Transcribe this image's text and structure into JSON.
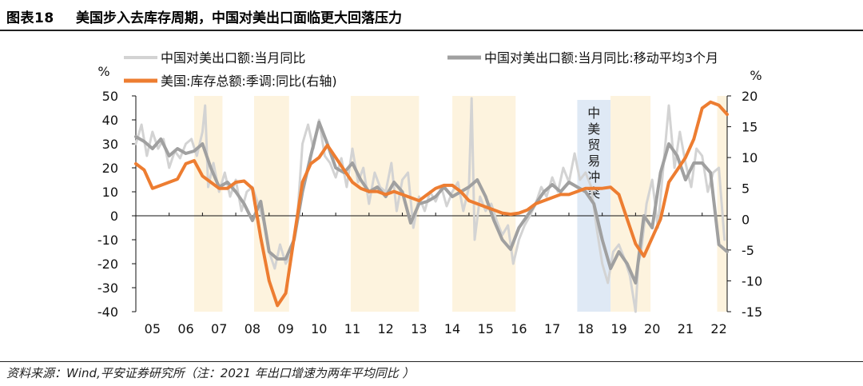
{
  "figure": {
    "label": "图表18",
    "title": "美国步入去库存周期，中国对美出口面临更大回落压力",
    "source": "资料来源：Wind,平安证券研究所（注：2021 年出口增速为两年平均同比 ）"
  },
  "chart_data": {
    "type": "line",
    "left_unit": "%",
    "right_unit": "%",
    "x_ticks": [
      "05",
      "06",
      "07",
      "08",
      "09",
      "10",
      "11",
      "12",
      "13",
      "14",
      "15",
      "16",
      "17",
      "18",
      "19",
      "20",
      "21",
      "22"
    ],
    "x_range": [
      2005.0,
      2022.75
    ],
    "y_left": {
      "ticks": [
        50,
        40,
        30,
        20,
        10,
        0,
        -10,
        -20,
        -30,
        -40
      ],
      "min": -40,
      "max": 50
    },
    "y_right": {
      "ticks": [
        20,
        15,
        10,
        5,
        0,
        -5,
        -10,
        -15
      ],
      "min": -15,
      "max": 20
    },
    "colors": {
      "raw": "#d3d3d3",
      "ma3": "#a0a0a0",
      "inventory": "#ed7d31",
      "cycle": "#fdf3de",
      "event": "#dfe9f5"
    },
    "shaded_periods": [
      {
        "start": 2006.75,
        "end": 2007.6
      },
      {
        "start": 2008.55,
        "end": 2009.6
      },
      {
        "start": 2011.45,
        "end": 2013.5
      },
      {
        "start": 2014.5,
        "end": 2016.4
      },
      {
        "start": 2019.25,
        "end": 2020.45
      },
      {
        "start": 2022.45,
        "end": 2022.75
      }
    ],
    "event_period": {
      "start": 2018.25,
      "end": 2019.25,
      "label": "中美贸易冲突"
    },
    "series": [
      {
        "name": "中国对美出口额:当月同比",
        "axis": "left",
        "x": [
          2005.0,
          2005.17,
          2005.33,
          2005.5,
          2005.67,
          2005.83,
          2006.0,
          2006.17,
          2006.33,
          2006.5,
          2006.67,
          2006.83,
          2007.0,
          2007.08,
          2007.17,
          2007.33,
          2007.5,
          2007.67,
          2007.83,
          2008.0,
          2008.17,
          2008.33,
          2008.5,
          2008.67,
          2008.83,
          2009.0,
          2009.17,
          2009.33,
          2009.5,
          2009.67,
          2009.83,
          2010.0,
          2010.17,
          2010.33,
          2010.5,
          2010.67,
          2010.83,
          2011.0,
          2011.17,
          2011.33,
          2011.5,
          2011.67,
          2011.83,
          2012.0,
          2012.17,
          2012.33,
          2012.5,
          2012.67,
          2012.83,
          2013.0,
          2013.17,
          2013.33,
          2013.5,
          2013.67,
          2013.83,
          2014.0,
          2014.17,
          2014.33,
          2014.5,
          2014.67,
          2014.83,
          2015.0,
          2015.08,
          2015.17,
          2015.33,
          2015.5,
          2015.67,
          2015.83,
          2016.0,
          2016.17,
          2016.33,
          2016.5,
          2016.67,
          2016.83,
          2017.0,
          2017.17,
          2017.33,
          2017.5,
          2017.67,
          2017.83,
          2018.0,
          2018.17,
          2018.33,
          2018.5,
          2018.67,
          2018.83,
          2019.0,
          2019.17,
          2019.33,
          2019.5,
          2019.67,
          2019.83,
          2020.0,
          2020.08,
          2020.17,
          2020.33,
          2020.5,
          2020.67,
          2020.83,
          2021.0,
          2021.17,
          2021.33,
          2021.5,
          2021.67,
          2021.83,
          2022.0,
          2022.17,
          2022.33,
          2022.5,
          2022.67
        ],
        "values": [
          30,
          38,
          25,
          35,
          28,
          32,
          20,
          27,
          24,
          30,
          32,
          25,
          35,
          46,
          12,
          22,
          10,
          18,
          8,
          15,
          2,
          10,
          12,
          5,
          -2,
          -15,
          -22,
          -12,
          -20,
          -16,
          -4,
          30,
          38,
          28,
          40,
          25,
          22,
          16,
          24,
          12,
          28,
          14,
          20,
          5,
          18,
          12,
          10,
          22,
          2,
          15,
          18,
          -5,
          8,
          2,
          10,
          6,
          12,
          4,
          10,
          14,
          2,
          12,
          49,
          -10,
          8,
          2,
          5,
          -2,
          -8,
          -4,
          -20,
          -10,
          -4,
          0,
          5,
          12,
          8,
          16,
          10,
          20,
          14,
          26,
          15,
          18,
          12,
          -5,
          -20,
          -28,
          -15,
          -12,
          -18,
          -25,
          -40,
          -20,
          -15,
          5,
          15,
          -5,
          20,
          46,
          20,
          35,
          22,
          12,
          28,
          25,
          10,
          18,
          20,
          -10
        ]
      },
      {
        "name": "中国对美出口额:当月同比:移动平均3个月",
        "axis": "left",
        "x": [
          2005.0,
          2005.25,
          2005.5,
          2005.75,
          2006.0,
          2006.25,
          2006.5,
          2006.75,
          2007.0,
          2007.25,
          2007.5,
          2007.75,
          2008.0,
          2008.25,
          2008.5,
          2008.75,
          2009.0,
          2009.25,
          2009.5,
          2009.75,
          2010.0,
          2010.25,
          2010.5,
          2010.75,
          2011.0,
          2011.25,
          2011.5,
          2011.75,
          2012.0,
          2012.25,
          2012.5,
          2012.75,
          2013.0,
          2013.25,
          2013.5,
          2013.75,
          2014.0,
          2014.25,
          2014.5,
          2014.75,
          2015.0,
          2015.25,
          2015.5,
          2015.75,
          2016.0,
          2016.25,
          2016.5,
          2016.75,
          2017.0,
          2017.25,
          2017.5,
          2017.75,
          2018.0,
          2018.25,
          2018.5,
          2018.75,
          2019.0,
          2019.25,
          2019.5,
          2019.75,
          2020.0,
          2020.25,
          2020.5,
          2020.75,
          2021.0,
          2021.25,
          2021.5,
          2021.75,
          2022.0,
          2022.25,
          2022.5,
          2022.75
        ],
        "values": [
          33,
          31,
          28,
          32,
          25,
          28,
          26,
          27,
          30,
          20,
          12,
          14,
          10,
          5,
          -2,
          6,
          -15,
          -18,
          -18,
          -10,
          10,
          25,
          39,
          30,
          20,
          18,
          22,
          15,
          10,
          12,
          8,
          14,
          10,
          -3,
          5,
          6,
          8,
          12,
          8,
          10,
          12,
          15,
          8,
          -2,
          -10,
          -14,
          -5,
          0,
          5,
          10,
          13,
          10,
          14,
          12,
          10,
          5,
          -10,
          -22,
          -15,
          -20,
          -28,
          0,
          -5,
          18,
          30,
          25,
          15,
          22,
          22,
          18,
          -12,
          -15
        ]
      },
      {
        "name": "美国:库存总额:季调:同比(右轴)",
        "axis": "right",
        "x": [
          2005.0,
          2005.25,
          2005.5,
          2005.75,
          2006.0,
          2006.25,
          2006.5,
          2006.75,
          2007.0,
          2007.25,
          2007.5,
          2007.75,
          2008.0,
          2008.25,
          2008.5,
          2008.75,
          2009.0,
          2009.25,
          2009.5,
          2009.75,
          2010.0,
          2010.25,
          2010.5,
          2010.75,
          2011.0,
          2011.25,
          2011.5,
          2011.75,
          2012.0,
          2012.25,
          2012.5,
          2012.75,
          2013.0,
          2013.25,
          2013.5,
          2013.75,
          2014.0,
          2014.25,
          2014.5,
          2014.75,
          2015.0,
          2015.25,
          2015.5,
          2015.75,
          2016.0,
          2016.25,
          2016.5,
          2016.75,
          2017.0,
          2017.25,
          2017.5,
          2017.75,
          2018.0,
          2018.25,
          2018.5,
          2018.75,
          2019.0,
          2019.25,
          2019.5,
          2019.75,
          2020.0,
          2020.25,
          2020.5,
          2020.75,
          2021.0,
          2021.25,
          2021.5,
          2021.75,
          2022.0,
          2022.25,
          2022.5,
          2022.75
        ],
        "values": [
          9,
          8,
          5,
          5.5,
          6,
          6.5,
          9,
          9.5,
          7,
          6,
          5,
          5,
          6,
          6.2,
          5,
          -3,
          -10,
          -14,
          -12,
          -3,
          6,
          9,
          10,
          12,
          10,
          8,
          6,
          5,
          4.5,
          4.5,
          4,
          4.5,
          4,
          3.5,
          3,
          4,
          5,
          5.5,
          5.5,
          4.5,
          3,
          2.5,
          2,
          1.5,
          1,
          0.8,
          1,
          1.5,
          2.5,
          3,
          3.5,
          4,
          4,
          4.5,
          5,
          5,
          5,
          5.2,
          4,
          0,
          -4,
          -6,
          -3,
          0,
          6,
          8,
          10,
          13,
          18,
          19,
          18.5,
          17
        ]
      }
    ]
  }
}
